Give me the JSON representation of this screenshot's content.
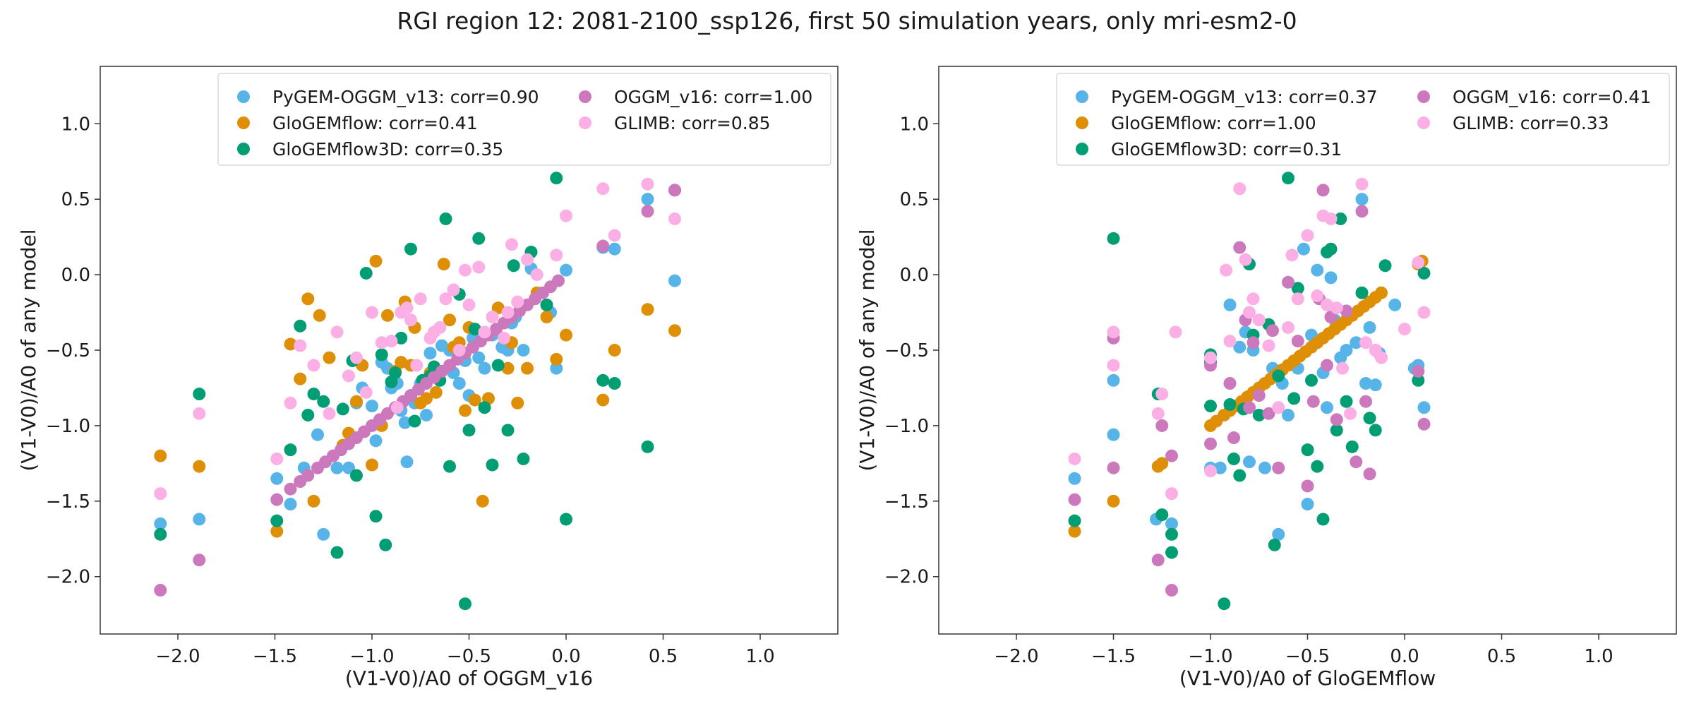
{
  "suptitle": "RGI region 12: 2081-2100_ssp126, first 50 simulation years, only mri-esm2-0",
  "colors": {
    "PyGEM-OGGM_v13": "#56b4e9",
    "GloGEMflow": "#de8f05",
    "GloGEMflow3D": "#029e73",
    "OGGM_v16": "#cc78bc",
    "GLIMB": "#fbafe4"
  },
  "chart_data": [
    {
      "type": "scatter",
      "xlabel": "(V1-V0)/A0 of OGGM_v16",
      "ylabel": "(V1-V0)/A0 of any model",
      "xlim": [
        -2.4,
        1.4
      ],
      "ylim": [
        -2.38,
        1.38
      ],
      "xticks": [
        -2.0,
        -1.5,
        -1.0,
        -0.5,
        0.0,
        0.5,
        1.0
      ],
      "xtick_labels": [
        "−2.0",
        "−1.5",
        "−1.0",
        "−0.5",
        "0.0",
        "0.5",
        "1.0"
      ],
      "yticks": [
        -2.0,
        -1.5,
        -1.0,
        -0.5,
        0.0,
        0.5,
        1.0
      ],
      "ytick_labels": [
        "−2.0",
        "−1.5",
        "−1.0",
        "−0.5",
        "0.0",
        "0.5",
        "1.0"
      ],
      "legend_location": "top-right",
      "legend_columns": 2,
      "series": [
        {
          "name": "PyGEM-OGGM_v13",
          "legend_label": "PyGEM-OGGM_v13: corr=0.90",
          "x": [
            -2.09,
            -1.89,
            -1.49,
            -1.42,
            -1.35,
            -1.28,
            -1.25,
            -1.18,
            -1.12,
            -1.08,
            -1.05,
            -1.0,
            -0.98,
            -0.95,
            -0.92,
            -0.9,
            -0.87,
            -0.85,
            -0.83,
            -0.82,
            -0.8,
            -0.78,
            -0.75,
            -0.72,
            -0.7,
            -0.67,
            -0.64,
            -0.6,
            -0.58,
            -0.55,
            -0.52,
            -0.5,
            -0.48,
            -0.45,
            -0.42,
            -0.38,
            -0.33,
            -0.3,
            -0.28,
            -0.26,
            -0.22,
            -0.18,
            -0.08,
            -0.05,
            0.0,
            0.19,
            0.25,
            0.42,
            0.56
          ],
          "y": [
            -1.65,
            -1.62,
            -1.35,
            -1.52,
            -1.28,
            -1.06,
            -1.72,
            -1.28,
            -1.28,
            -0.85,
            -0.75,
            -0.87,
            -1.1,
            -0.58,
            -0.62,
            -0.75,
            -0.72,
            -0.9,
            -0.98,
            -1.24,
            -0.8,
            -0.85,
            -0.72,
            -0.93,
            -0.52,
            -0.68,
            -0.47,
            -0.5,
            -0.65,
            -0.72,
            -0.57,
            -0.8,
            -0.42,
            -0.55,
            -0.62,
            -0.4,
            -0.48,
            -0.5,
            -0.32,
            -0.28,
            -0.5,
            0.04,
            -0.25,
            -0.62,
            0.03,
            0.18,
            0.17,
            0.5,
            -0.04
          ]
        },
        {
          "name": "GloGEMflow",
          "legend_label": "GloGEMflow: corr=0.41",
          "x": [
            -2.09,
            -1.89,
            -1.49,
            -1.42,
            -1.37,
            -1.33,
            -1.3,
            -1.27,
            -1.22,
            -1.15,
            -1.12,
            -1.08,
            -1.05,
            -1.0,
            -0.98,
            -0.95,
            -0.92,
            -0.88,
            -0.85,
            -0.83,
            -0.8,
            -0.78,
            -0.75,
            -0.72,
            -0.7,
            -0.67,
            -0.63,
            -0.6,
            -0.58,
            -0.55,
            -0.52,
            -0.5,
            -0.47,
            -0.43,
            -0.4,
            -0.35,
            -0.3,
            -0.28,
            -0.25,
            -0.2,
            -0.15,
            -0.1,
            -0.05,
            0.0,
            0.19,
            0.25,
            0.42,
            0.56
          ],
          "y": [
            -1.2,
            -1.27,
            -1.7,
            -0.46,
            -0.69,
            -0.16,
            -1.5,
            -0.27,
            -0.55,
            -1.13,
            -1.05,
            -0.84,
            -0.6,
            -1.26,
            0.09,
            -1.0,
            -0.27,
            -0.64,
            -0.58,
            -0.18,
            -0.6,
            -0.35,
            -0.85,
            -0.82,
            -0.65,
            -0.78,
            0.07,
            -0.3,
            -0.48,
            -0.45,
            -0.9,
            -0.35,
            -0.83,
            -1.5,
            -0.82,
            -0.22,
            -0.62,
            -0.45,
            -0.85,
            -0.62,
            -0.12,
            -0.28,
            -0.56,
            -0.4,
            -0.83,
            -0.5,
            -0.23,
            -0.37
          ]
        },
        {
          "name": "GloGEMflow3D",
          "legend_label": "GloGEMflow3D: corr=0.35",
          "x": [
            -2.09,
            -1.89,
            -1.49,
            -1.42,
            -1.37,
            -1.33,
            -1.3,
            -1.25,
            -1.18,
            -1.15,
            -1.1,
            -1.08,
            -1.03,
            -0.98,
            -0.95,
            -0.93,
            -0.9,
            -0.88,
            -0.85,
            -0.8,
            -0.78,
            -0.74,
            -0.7,
            -0.68,
            -0.65,
            -0.62,
            -0.6,
            -0.55,
            -0.52,
            -0.5,
            -0.47,
            -0.45,
            -0.42,
            -0.38,
            -0.35,
            -0.3,
            -0.27,
            -0.22,
            -0.18,
            -0.1,
            -0.05,
            0.0,
            0.19,
            0.25,
            0.42,
            0.56
          ],
          "y": [
            -1.72,
            -0.79,
            -1.63,
            -1.16,
            -0.34,
            -0.93,
            -0.79,
            -0.84,
            -1.84,
            -0.89,
            -0.57,
            -1.33,
            0.01,
            -1.6,
            -0.53,
            -1.79,
            -0.71,
            -0.65,
            -0.42,
            0.17,
            -0.97,
            -0.7,
            -0.67,
            -0.61,
            -0.7,
            0.37,
            -1.27,
            -0.13,
            -2.18,
            -1.03,
            -0.36,
            0.24,
            -0.88,
            -1.26,
            -0.6,
            -1.03,
            0.06,
            -1.22,
            0.15,
            -0.2,
            0.64,
            -1.62,
            -0.7,
            -0.72,
            -1.14,
            0.56
          ]
        },
        {
          "name": "OGGM_v16",
          "legend_label": "OGGM_v16: corr=1.00",
          "x": [
            -2.09,
            -1.89,
            -1.49,
            -1.42,
            -1.37,
            -1.33,
            -1.28,
            -1.24,
            -1.2,
            -1.16,
            -1.12,
            -1.08,
            -1.04,
            -1.0,
            -0.96,
            -0.92,
            -0.88,
            -0.84,
            -0.8,
            -0.76,
            -0.72,
            -0.68,
            -0.64,
            -0.6,
            -0.56,
            -0.52,
            -0.48,
            -0.44,
            -0.4,
            -0.36,
            -0.32,
            -0.28,
            -0.24,
            -0.2,
            -0.16,
            -0.12,
            -0.08,
            -0.04,
            0.19,
            0.42,
            0.56
          ],
          "y": [
            -2.09,
            -1.89,
            -1.49,
            -1.42,
            -1.37,
            -1.33,
            -1.28,
            -1.24,
            -1.2,
            -1.16,
            -1.12,
            -1.08,
            -1.04,
            -1.0,
            -0.96,
            -0.92,
            -0.88,
            -0.84,
            -0.8,
            -0.76,
            -0.72,
            -0.68,
            -0.64,
            -0.6,
            -0.56,
            -0.52,
            -0.48,
            -0.44,
            -0.4,
            -0.36,
            -0.32,
            -0.28,
            -0.24,
            -0.2,
            -0.16,
            -0.12,
            -0.08,
            -0.04,
            0.19,
            0.42,
            0.56
          ]
        },
        {
          "name": "GLIMB",
          "legend_label": "GLIMB: corr=0.85",
          "x": [
            -2.09,
            -1.89,
            -1.49,
            -1.42,
            -1.37,
            -1.3,
            -1.22,
            -1.18,
            -1.12,
            -1.08,
            -1.03,
            -1.0,
            -0.95,
            -0.9,
            -0.87,
            -0.85,
            -0.82,
            -0.8,
            -0.77,
            -0.75,
            -0.7,
            -0.68,
            -0.65,
            -0.62,
            -0.58,
            -0.55,
            -0.52,
            -0.5,
            -0.45,
            -0.42,
            -0.38,
            -0.32,
            -0.3,
            -0.28,
            -0.25,
            -0.2,
            -0.15,
            -0.05,
            0.0,
            0.19,
            0.25,
            0.42,
            0.56
          ],
          "y": [
            -1.45,
            -0.92,
            -1.22,
            -0.85,
            -0.47,
            -0.6,
            -0.92,
            -0.38,
            -0.67,
            -0.55,
            -0.78,
            -0.25,
            -0.45,
            -0.44,
            -0.88,
            -0.25,
            -0.22,
            -0.3,
            -0.6,
            -0.16,
            -0.42,
            -0.38,
            -0.35,
            -0.16,
            -0.1,
            -0.5,
            0.03,
            -0.2,
            0.05,
            -0.38,
            -0.28,
            -0.42,
            -0.25,
            0.2,
            -0.18,
            0.1,
            0.0,
            0.13,
            0.39,
            0.57,
            0.26,
            0.6,
            0.37
          ]
        }
      ]
    },
    {
      "type": "scatter",
      "xlabel": "(V1-V0)/A0 of GloGEMflow",
      "ylabel": "(V1-V0)/A0 of any model",
      "xlim": [
        -2.4,
        1.4
      ],
      "ylim": [
        -2.38,
        1.38
      ],
      "xticks": [
        -2.0,
        -1.5,
        -1.0,
        -0.5,
        0.0,
        0.5,
        1.0
      ],
      "xtick_labels": [
        "−2.0",
        "−1.5",
        "−1.0",
        "−0.5",
        "0.0",
        "0.5",
        "1.0"
      ],
      "yticks": [
        -2.0,
        -1.5,
        -1.0,
        -0.5,
        0.0,
        0.5,
        1.0
      ],
      "ytick_labels": [
        "−2.0",
        "−1.5",
        "−1.0",
        "−0.5",
        "0.0",
        "0.5",
        "1.0"
      ],
      "legend_location": "top-right",
      "legend_columns": 2,
      "series": [
        {
          "name": "PyGEM-OGGM_v13",
          "legend_label": "PyGEM-OGGM_v13: corr=0.37",
          "x": [
            -1.7,
            -1.5,
            -1.5,
            -1.28,
            -1.2,
            -1.0,
            -0.95,
            -0.9,
            -0.85,
            -0.82,
            -0.8,
            -0.78,
            -0.72,
            -0.68,
            -0.65,
            -0.63,
            -0.6,
            -0.55,
            -0.52,
            -0.5,
            -0.48,
            -0.45,
            -0.42,
            -0.4,
            -0.38,
            -0.36,
            -0.33,
            -0.3,
            -0.25,
            -0.22,
            -0.2,
            -0.18,
            -0.15,
            -0.13,
            -0.05,
            0.05,
            0.07,
            0.1
          ],
          "y": [
            -1.35,
            -1.06,
            -0.7,
            -1.62,
            -1.65,
            -1.28,
            -1.28,
            -0.2,
            -0.48,
            -0.38,
            -1.24,
            -0.5,
            -1.28,
            -0.62,
            -1.72,
            -0.72,
            -0.93,
            -0.62,
            0.17,
            -1.52,
            -0.4,
            0.03,
            -0.65,
            -0.88,
            -0.02,
            -0.3,
            -0.55,
            -0.5,
            -0.45,
            0.5,
            -0.72,
            -0.35,
            -0.73,
            -0.52,
            -0.2,
            -0.62,
            -0.6,
            -0.88
          ]
        },
        {
          "name": "GloGEMflow",
          "legend_label": "GloGEMflow: corr=1.00",
          "x": [
            -1.7,
            -1.5,
            -1.27,
            -1.25,
            -1.0,
            -0.97,
            -0.93,
            -0.9,
            -0.87,
            -0.84,
            -0.81,
            -0.78,
            -0.75,
            -0.72,
            -0.69,
            -0.66,
            -0.63,
            -0.6,
            -0.57,
            -0.54,
            -0.51,
            -0.48,
            -0.45,
            -0.42,
            -0.39,
            -0.36,
            -0.33,
            -0.3,
            -0.27,
            -0.24,
            -0.21,
            -0.18,
            -0.15,
            -0.12,
            0.07,
            0.09
          ],
          "y": [
            -1.7,
            -1.5,
            -1.27,
            -1.25,
            -1.0,
            -0.97,
            -0.93,
            -0.9,
            -0.87,
            -0.84,
            -0.81,
            -0.78,
            -0.75,
            -0.72,
            -0.69,
            -0.66,
            -0.63,
            -0.6,
            -0.57,
            -0.54,
            -0.51,
            -0.48,
            -0.45,
            -0.42,
            -0.39,
            -0.36,
            -0.33,
            -0.3,
            -0.27,
            -0.24,
            -0.21,
            -0.18,
            -0.15,
            -0.12,
            0.07,
            0.09
          ]
        },
        {
          "name": "GloGEMflow3D",
          "legend_label": "GloGEMflow3D: corr=0.31",
          "x": [
            -1.7,
            -1.5,
            -1.27,
            -1.25,
            -1.2,
            -1.2,
            -1.0,
            -1.0,
            -1.0,
            -0.93,
            -0.9,
            -0.88,
            -0.85,
            -0.83,
            -0.8,
            -0.78,
            -0.75,
            -0.7,
            -0.67,
            -0.65,
            -0.6,
            -0.57,
            -0.55,
            -0.5,
            -0.48,
            -0.45,
            -0.42,
            -0.4,
            -0.38,
            -0.35,
            -0.33,
            -0.3,
            -0.27,
            -0.22,
            -0.18,
            -0.15,
            -0.1,
            0.07,
            0.1
          ],
          "y": [
            -1.63,
            0.24,
            -0.79,
            -1.59,
            -1.72,
            -1.84,
            -0.53,
            -0.87,
            -0.58,
            -2.18,
            -0.86,
            -1.22,
            -1.33,
            -0.89,
            0.07,
            -0.4,
            -0.93,
            -0.33,
            -1.79,
            -0.67,
            0.64,
            -0.82,
            -0.09,
            -1.16,
            -0.7,
            -1.27,
            -1.62,
            0.15,
            0.17,
            -1.03,
            0.37,
            -0.84,
            -1.14,
            -0.12,
            -0.95,
            -1.03,
            0.06,
            -0.7,
            0.01
          ]
        },
        {
          "name": "OGGM_v16",
          "legend_label": "OGGM_v16: corr=0.41",
          "x": [
            -1.7,
            -1.5,
            -1.5,
            -1.27,
            -1.25,
            -1.2,
            -1.2,
            -1.0,
            -1.0,
            -0.9,
            -0.88,
            -0.85,
            -0.82,
            -0.8,
            -0.78,
            -0.75,
            -0.7,
            -0.68,
            -0.65,
            -0.6,
            -0.55,
            -0.5,
            -0.47,
            -0.44,
            -0.42,
            -0.4,
            -0.38,
            -0.35,
            -0.3,
            -0.25,
            -0.22,
            -0.2,
            -0.18,
            -0.15,
            0.07,
            0.1
          ],
          "y": [
            -1.49,
            -1.28,
            -0.42,
            -1.89,
            -1.0,
            -2.09,
            -1.2,
            -1.12,
            -0.6,
            -0.72,
            -1.08,
            0.18,
            -0.3,
            -0.88,
            -0.45,
            -0.8,
            -0.92,
            -0.37,
            -1.28,
            -0.05,
            -0.44,
            -1.4,
            -0.84,
            -0.16,
            0.56,
            -0.6,
            -0.28,
            -0.96,
            -0.24,
            -1.24,
            0.42,
            -0.84,
            -1.32,
            -0.5,
            -0.64,
            -0.99
          ]
        },
        {
          "name": "GLIMB",
          "legend_label": "GLIMB: corr=0.33",
          "x": [
            -1.7,
            -1.5,
            -1.5,
            -1.27,
            -1.25,
            -1.2,
            -1.18,
            -1.0,
            -1.0,
            -0.92,
            -0.9,
            -0.85,
            -0.82,
            -0.8,
            -0.78,
            -0.75,
            -0.7,
            -0.65,
            -0.6,
            -0.58,
            -0.55,
            -0.5,
            -0.45,
            -0.42,
            -0.4,
            -0.38,
            -0.35,
            -0.32,
            -0.28,
            -0.22,
            -0.2,
            -0.15,
            -0.12,
            0.0,
            0.07,
            0.1
          ],
          "y": [
            -1.22,
            -0.38,
            -0.6,
            -0.92,
            -0.79,
            -1.45,
            -0.38,
            -1.3,
            -0.55,
            0.03,
            -0.44,
            0.57,
            0.1,
            -0.25,
            -0.16,
            -0.3,
            -0.47,
            -0.88,
            -0.35,
            0.13,
            -0.16,
            0.26,
            -0.14,
            0.39,
            -0.2,
            0.37,
            -0.22,
            -0.62,
            -0.92,
            0.6,
            -0.45,
            -0.5,
            -0.55,
            -0.36,
            0.08,
            -0.25
          ]
        }
      ]
    }
  ]
}
